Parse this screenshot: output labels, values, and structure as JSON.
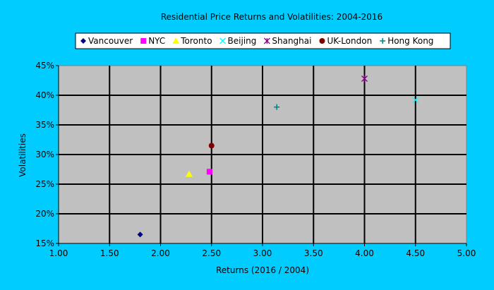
{
  "chart_data": {
    "type": "scatter",
    "title": "Residential Price Returns and Volatilities: 2004-2016",
    "xlabel": "Returns (2016 / 2004)",
    "ylabel": "Volatilities",
    "xlim": [
      1.0,
      5.0
    ],
    "ylim": [
      0.15,
      0.45
    ],
    "x_ticks": [
      "1.00",
      "1.50",
      "2.00",
      "2.50",
      "3.00",
      "3.50",
      "4.00",
      "4.50",
      "5.00"
    ],
    "y_ticks": [
      "15%",
      "20%",
      "25%",
      "30%",
      "35%",
      "40%",
      "45%"
    ],
    "grid": true,
    "legend_position": "top",
    "colors": {
      "background": "#00ccff",
      "plot_area": "#c0c0c0",
      "grid": "#000000"
    },
    "series": [
      {
        "name": "Vancouver",
        "marker": "diamond",
        "color": "#000080",
        "x": [
          1.8
        ],
        "y": [
          0.165
        ]
      },
      {
        "name": "NYC",
        "marker": "square",
        "color": "#ff00ff",
        "x": [
          2.48
        ],
        "y": [
          0.271
        ]
      },
      {
        "name": "Toronto",
        "marker": "triangle",
        "color": "#ffff00",
        "x": [
          2.28
        ],
        "y": [
          0.267
        ]
      },
      {
        "name": "Beijing",
        "marker": "x",
        "color": "#00ffff",
        "x": [
          4.5
        ],
        "y": [
          0.392
        ]
      },
      {
        "name": "Shanghai",
        "marker": "star",
        "color": "#800080",
        "x": [
          4.0
        ],
        "y": [
          0.428
        ]
      },
      {
        "name": "UK-London",
        "marker": "circle",
        "color": "#800000",
        "x": [
          2.5
        ],
        "y": [
          0.315
        ]
      },
      {
        "name": "Hong Kong",
        "marker": "plus",
        "color": "#008080",
        "x": [
          3.14
        ],
        "y": [
          0.38
        ]
      }
    ]
  }
}
